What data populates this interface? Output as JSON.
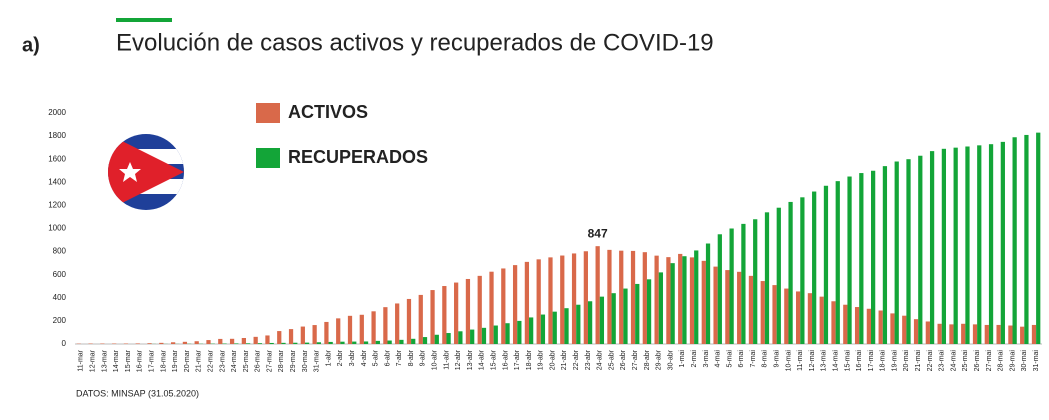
{
  "panel_label": "a)",
  "source": "DATOS: MINSAP (31.05.2020)",
  "chart_data": {
    "type": "bar",
    "title": "Evolución de casos activos y recuperados de COVID-19",
    "categories": [
      "11-mar",
      "12-mar",
      "13-mar",
      "14-mar",
      "15-mar",
      "16-mar",
      "17-mar",
      "18-mar",
      "19-mar",
      "20-mar",
      "21-mar",
      "22-mar",
      "23-mar",
      "24-mar",
      "25-mar",
      "26-mar",
      "27-mar",
      "28-mar",
      "29-mar",
      "30-mar",
      "31-mar",
      "1-abr",
      "2-abr",
      "3-abr",
      "4-abr",
      "5-abr",
      "6-abr",
      "7-abr",
      "8-abr",
      "9-abr",
      "10-abr",
      "11-abr",
      "12-abr",
      "13-abr",
      "14-abr",
      "15-abr",
      "16-abr",
      "17-abr",
      "18-abr",
      "19-abr",
      "20-abr",
      "21-abr",
      "22-abr",
      "23-abr",
      "24-abr",
      "25-abr",
      "26-abr",
      "27-abr",
      "28-abr",
      "29-abr",
      "30-abr",
      "1-mai",
      "2-mai",
      "3-mai",
      "4-mai",
      "5-mai",
      "6-mai",
      "7-mai",
      "8-mai",
      "9-mai",
      "10-mai",
      "11-mai",
      "12-mai",
      "13-mai",
      "14-mai",
      "15-mai",
      "16-mai",
      "17-mai",
      "18-mai",
      "19-mai",
      "20-mai",
      "21-mai",
      "22-mai",
      "23-mai",
      "24-mai",
      "25-mai",
      "26-mai",
      "27-mai",
      "28-mai",
      "29-mai",
      "30-mai",
      "31-mai"
    ],
    "series": [
      {
        "name": "ACTIVOS",
        "color": "#d9694a",
        "values": [
          3,
          4,
          4,
          4,
          4,
          5,
          7,
          10,
          15,
          19,
          24,
          34,
          44,
          45,
          52,
          62,
          74,
          112,
          129,
          151,
          164,
          191,
          222,
          244,
          253,
          283,
          319,
          351,
          390,
          425,
          467,
          502,
          532,
          563,
          590,
          626,
          654,
          683,
          711,
          733,
          750,
          766,
          784,
          803,
          847,
          815,
          808,
          806,
          795,
          765,
          752,
          780,
          750,
          720,
          670,
          640,
          625,
          590,
          545,
          510,
          480,
          455,
          440,
          410,
          370,
          340,
          320,
          305,
          290,
          265,
          245,
          215,
          195,
          175,
          170,
          175,
          170,
          165,
          165,
          160,
          150,
          165
        ]
      },
      {
        "name": "RECUPERADOS",
        "color": "#13a538",
        "values": [
          0,
          0,
          0,
          0,
          0,
          0,
          1,
          1,
          1,
          2,
          2,
          3,
          4,
          5,
          6,
          7,
          9,
          10,
          11,
          12,
          15,
          18,
          20,
          21,
          22,
          27,
          30,
          36,
          45,
          60,
          80,
          95,
          110,
          125,
          140,
          160,
          180,
          200,
          230,
          255,
          280,
          310,
          340,
          370,
          410,
          440,
          480,
          520,
          560,
          620,
          700,
          760,
          810,
          870,
          950,
          1000,
          1040,
          1080,
          1140,
          1180,
          1230,
          1270,
          1320,
          1370,
          1410,
          1450,
          1480,
          1500,
          1540,
          1580,
          1600,
          1630,
          1670,
          1690,
          1700,
          1710,
          1720,
          1730,
          1750,
          1790,
          1810,
          1830
        ]
      }
    ],
    "annotation_index": 44,
    "ylim": [
      0,
      2000
    ],
    "yticks": [
      0,
      200,
      400,
      600,
      800,
      1000,
      1200,
      1400,
      1600,
      1800,
      2000
    ],
    "grid": false
  }
}
